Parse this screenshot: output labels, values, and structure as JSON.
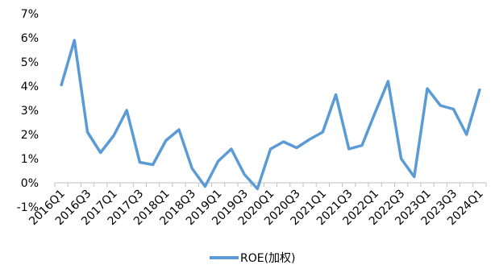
{
  "chart_data": {
    "type": "line",
    "title": "",
    "xlabel": "",
    "ylabel": "",
    "ylim": [
      -1,
      7
    ],
    "y_ticks": [
      -1,
      0,
      1,
      2,
      3,
      4,
      5,
      6,
      7
    ],
    "y_tick_labels": [
      "-1%",
      "0%",
      "1%",
      "2%",
      "3%",
      "4%",
      "5%",
      "6%",
      "7%"
    ],
    "x_tick_labels": [
      "2016Q1",
      "2016Q3",
      "2017Q1",
      "2017Q3",
      "2018Q1",
      "2018Q3",
      "2019Q1",
      "2019Q3",
      "2020Q1",
      "2020Q3",
      "2021Q1",
      "2021Q3",
      "2022Q1",
      "2022Q3",
      "2023Q1",
      "2023Q3",
      "2024Q1"
    ],
    "categories": [
      "2016Q1",
      "2016Q2",
      "2016Q3",
      "2016Q4",
      "2017Q1",
      "2017Q2",
      "2017Q3",
      "2017Q4",
      "2018Q1",
      "2018Q2",
      "2018Q3",
      "2018Q4",
      "2019Q1",
      "2019Q2",
      "2019Q3",
      "2019Q4",
      "2020Q1",
      "2020Q2",
      "2020Q3",
      "2020Q4",
      "2021Q1",
      "2021Q2",
      "2021Q3",
      "2021Q4",
      "2022Q1",
      "2022Q2",
      "2022Q3",
      "2022Q4",
      "2023Q1",
      "2023Q2",
      "2023Q3",
      "2023Q4",
      "2024Q1"
    ],
    "series": [
      {
        "name": "ROE(加权)",
        "color": "#5b9bd5",
        "values": [
          4.05,
          5.9,
          2.1,
          1.25,
          1.95,
          3.0,
          0.85,
          0.75,
          1.75,
          2.2,
          0.6,
          -0.15,
          0.9,
          1.4,
          0.35,
          -0.25,
          1.4,
          1.7,
          1.45,
          1.8,
          2.1,
          3.65,
          1.4,
          1.55,
          2.9,
          4.2,
          1.0,
          0.25,
          3.9,
          3.2,
          3.05,
          2.0,
          3.85
        ]
      }
    ],
    "grid": false,
    "legend_position": "bottom"
  }
}
